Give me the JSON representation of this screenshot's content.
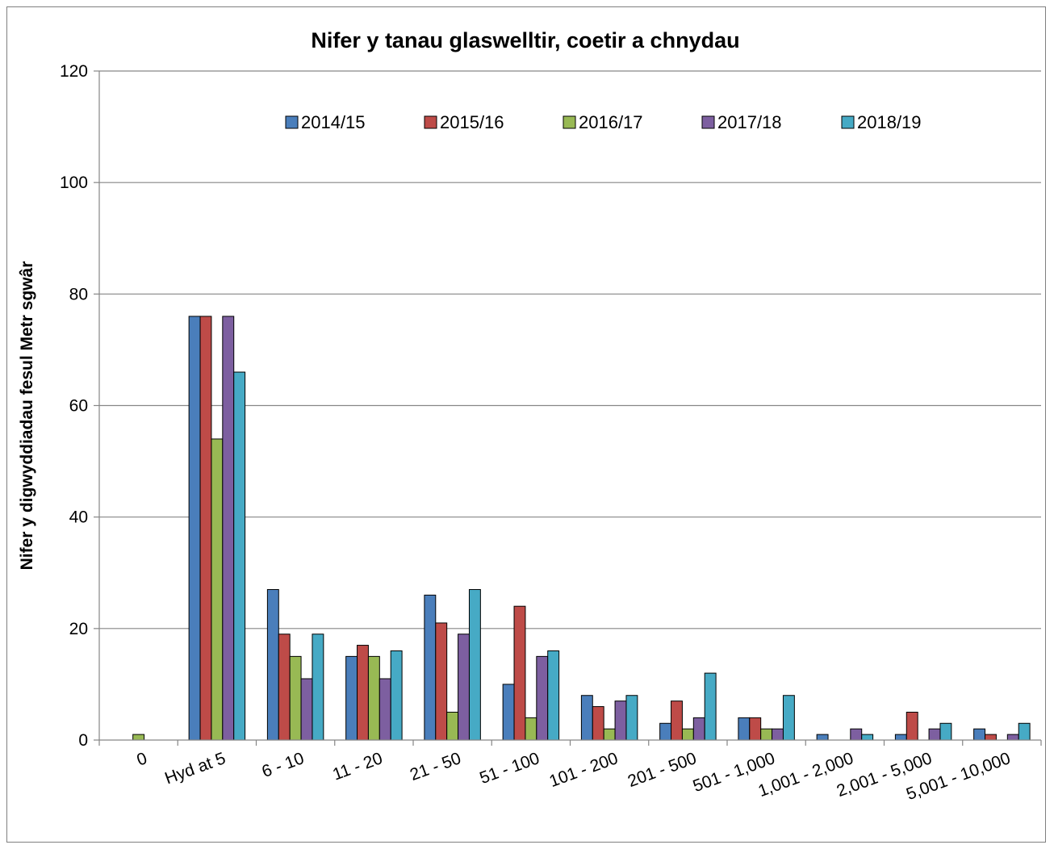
{
  "chart_data": {
    "type": "bar",
    "title": "Nifer y tanau glaswelltir, coetir a chnydau",
    "xlabel": "",
    "ylabel": "Nifer y digwyddiadau fesul Metr sgwâr",
    "ylim": [
      0,
      120
    ],
    "yticks": [
      0,
      20,
      40,
      60,
      80,
      100,
      120
    ],
    "grid": true,
    "legend_position": "top-center",
    "categories": [
      "0",
      "Hyd at 5",
      "6 - 10",
      "11 - 20",
      "21 - 50",
      "51 - 100",
      "101 - 200",
      "201 - 500",
      "501 - 1,000",
      "1,001 - 2,000",
      "2,001 - 5,000",
      "5,001 - 10,000"
    ],
    "series": [
      {
        "name": "2014/15",
        "color": "#4a7ebb",
        "values": [
          0,
          76,
          27,
          15,
          26,
          10,
          8,
          3,
          4,
          1,
          1,
          2
        ]
      },
      {
        "name": "2015/16",
        "color": "#be4b48",
        "values": [
          0,
          76,
          19,
          17,
          21,
          24,
          6,
          7,
          4,
          0,
          5,
          1
        ]
      },
      {
        "name": "2016/17",
        "color": "#98b954",
        "values": [
          1,
          54,
          15,
          15,
          5,
          4,
          2,
          2,
          2,
          0,
          0,
          0
        ]
      },
      {
        "name": "2017/18",
        "color": "#7d5fa0",
        "values": [
          0,
          76,
          11,
          11,
          19,
          15,
          7,
          4,
          2,
          2,
          2,
          1
        ]
      },
      {
        "name": "2018/19",
        "color": "#46aac5",
        "values": [
          0,
          66,
          19,
          16,
          27,
          16,
          8,
          12,
          8,
          1,
          3,
          3
        ]
      }
    ]
  }
}
